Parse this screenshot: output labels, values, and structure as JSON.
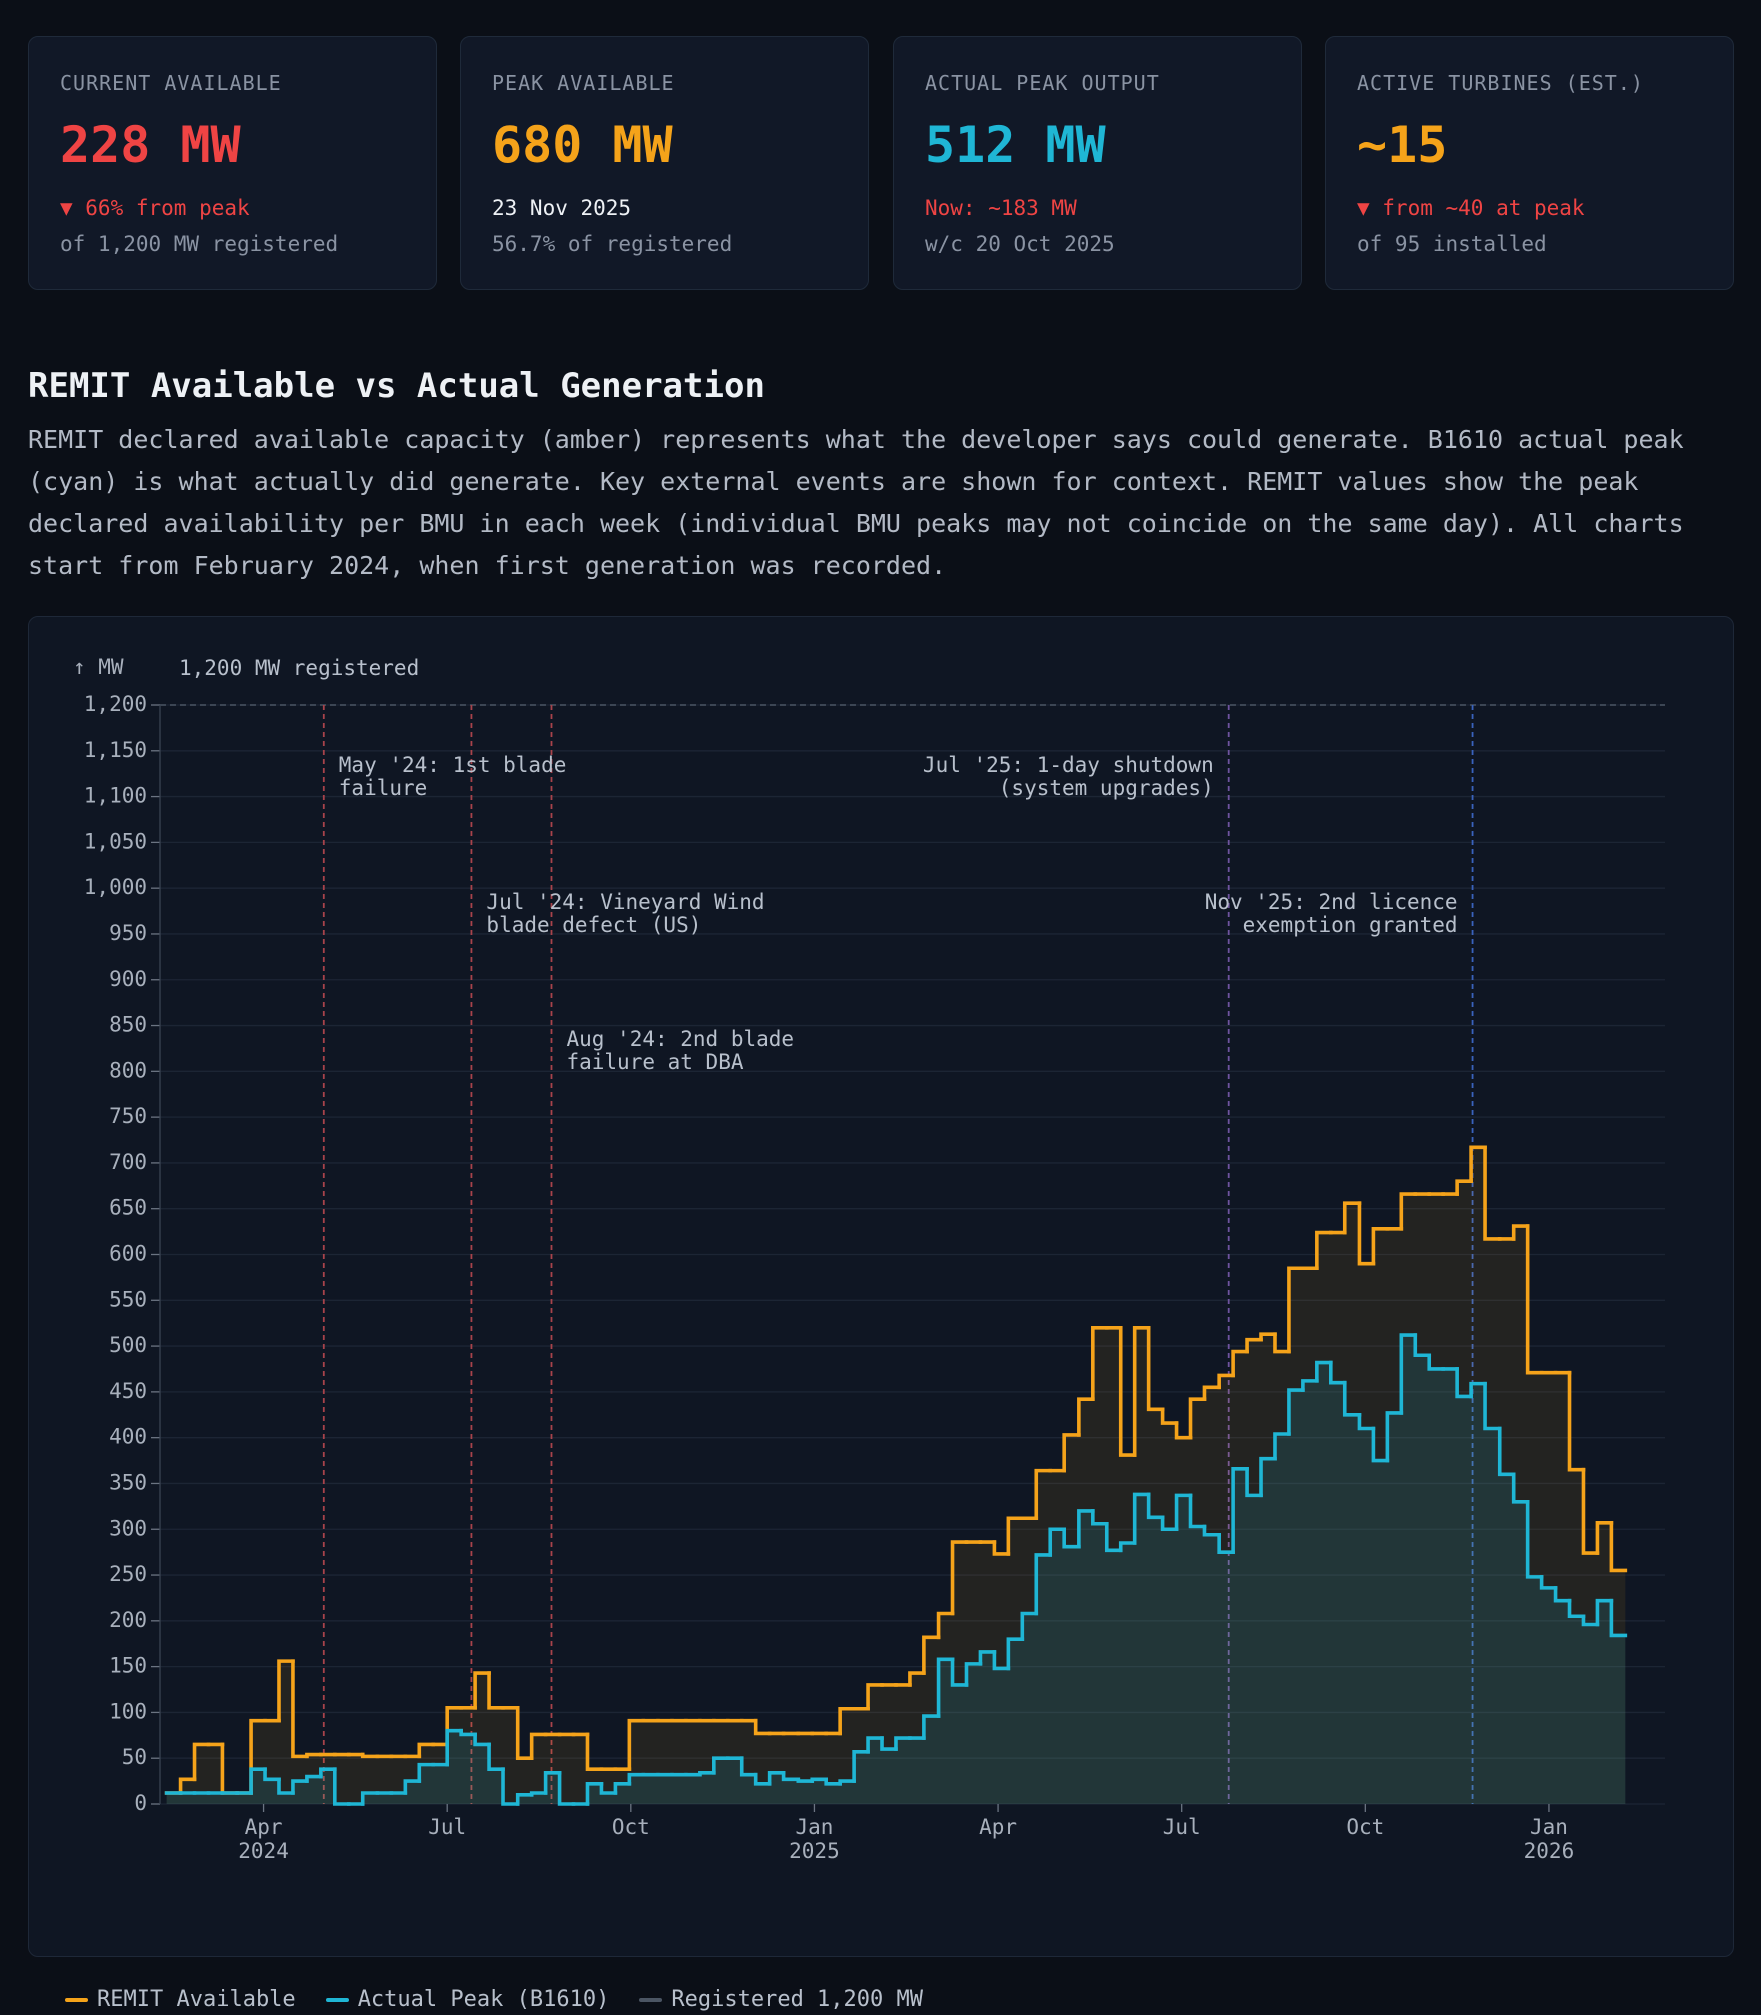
{
  "cards": [
    {
      "label": "CURRENT AVAILABLE",
      "value": "228 MW",
      "delta": "▼ 66% from peak",
      "note": "of 1,200 MW registered"
    },
    {
      "label": "PEAK AVAILABLE",
      "value": "680 MW",
      "delta": "23 Nov 2025",
      "note": "56.7% of registered"
    },
    {
      "label": "ACTUAL PEAK OUTPUT",
      "value": "512 MW",
      "delta": "Now: ~183 MW",
      "note": "w/c 20 Oct 2025"
    },
    {
      "label": "ACTIVE TURBINES (EST.)",
      "value": "~15",
      "delta": "▼ from ~40 at peak",
      "note": "of 95 installed"
    }
  ],
  "section": {
    "title": "REMIT Available vs Actual Generation",
    "description": "REMIT declared available capacity (amber) represents what the developer says could generate. B1610 actual peak (cyan) is what actually did generate. Key external events are shown for context. REMIT values show the peak declared availability per BMU in each week (individual BMU peaks may not coincide on the same day). All charts start from February 2024, when first generation was recorded."
  },
  "chart_data": {
    "type": "step",
    "y_axis_label": "↑ MW",
    "x": [
      2024.118,
      2024.137,
      2024.156,
      2024.175,
      2024.194,
      2024.214,
      2024.233,
      2024.252,
      2024.271,
      2024.29,
      2024.309,
      2024.328,
      2024.347,
      2024.366,
      2024.385,
      2024.405,
      2024.424,
      2024.443,
      2024.462,
      2024.481,
      2024.5,
      2024.519,
      2024.538,
      2024.557,
      2024.576,
      2024.596,
      2024.615,
      2024.634,
      2024.653,
      2024.672,
      2024.691,
      2024.71,
      2024.729,
      2024.748,
      2024.767,
      2024.787,
      2024.806,
      2024.825,
      2024.844,
      2024.863,
      2024.882,
      2024.901,
      2024.92,
      2024.939,
      2024.958,
      2024.978,
      2024.997,
      2025.016,
      2025.035,
      2025.054,
      2025.073,
      2025.092,
      2025.111,
      2025.13,
      2025.149,
      2025.169,
      2025.188,
      2025.207,
      2025.226,
      2025.245,
      2025.264,
      2025.283,
      2025.302,
      2025.321,
      2025.34,
      2025.36,
      2025.379,
      2025.398,
      2025.417,
      2025.436,
      2025.455,
      2025.474,
      2025.493,
      2025.512,
      2025.531,
      2025.551,
      2025.57,
      2025.589,
      2025.608,
      2025.627,
      2025.646,
      2025.665,
      2025.684,
      2025.703,
      2025.722,
      2025.742,
      2025.761,
      2025.78,
      2025.799,
      2025.818,
      2025.837,
      2025.856,
      2025.875,
      2025.894,
      2025.913,
      2025.933,
      2025.952,
      2025.971,
      2025.99,
      2026.009,
      2026.028,
      2026.047,
      2026.066,
      2026.085
    ],
    "series": [
      {
        "name": "REMIT Available",
        "color": "#f5a31a",
        "values": [
          12,
          27,
          65,
          65,
          12,
          12,
          91,
          91,
          156,
          52,
          54,
          54,
          54,
          54,
          52,
          52,
          52,
          52,
          65,
          65,
          105,
          105,
          143,
          105,
          105,
          50,
          76,
          76,
          76,
          76,
          38,
          38,
          38,
          91,
          91,
          91,
          91,
          91,
          91,
          91,
          91,
          91,
          77,
          77,
          77,
          77,
          77,
          77,
          104,
          104,
          130,
          130,
          130,
          143,
          182,
          208,
          286,
          286,
          286,
          273,
          312,
          312,
          364,
          364,
          403,
          442,
          520,
          520,
          381,
          520,
          431,
          416,
          400,
          442,
          455,
          468,
          494,
          507,
          513,
          494,
          585,
          585,
          624,
          624,
          656,
          590,
          628,
          628,
          666,
          666,
          666,
          666,
          680,
          717,
          617,
          617,
          631,
          471,
          471,
          471,
          365,
          274,
          307,
          255
        ]
      },
      {
        "name": "Actual Peak (B1610)",
        "color": "#1fb6d5",
        "values": [
          12,
          12,
          12,
          12,
          12,
          12,
          38,
          27,
          12,
          25,
          30,
          38,
          0,
          0,
          12,
          12,
          12,
          25,
          43,
          43,
          80,
          76,
          65,
          38,
          0,
          10,
          12,
          34,
          0,
          0,
          22,
          12,
          22,
          32,
          32,
          32,
          32,
          32,
          34,
          50,
          50,
          32,
          22,
          34,
          27,
          25,
          27,
          22,
          25,
          57,
          72,
          60,
          72,
          72,
          96,
          158,
          130,
          153,
          166,
          148,
          180,
          208,
          272,
          300,
          281,
          320,
          306,
          277,
          285,
          338,
          313,
          300,
          337,
          303,
          294,
          275,
          366,
          337,
          377,
          404,
          452,
          462,
          482,
          460,
          425,
          410,
          375,
          427,
          512,
          490,
          475,
          475,
          445,
          459,
          410,
          360,
          330,
          248,
          236,
          222,
          205,
          196,
          222,
          184
        ]
      }
    ],
    "reference_line": {
      "value": 1200,
      "label": "1,200 MW registered",
      "legend": "Registered 1,200 MW",
      "color": "#4b5563"
    },
    "annotations": [
      {
        "x": 2024.332,
        "text": "May '24: 1st blade\nfailure",
        "color": "#a8434b"
      },
      {
        "x": 2024.533,
        "text": "Jul '24: Vineyard Wind\nblade defect (US)",
        "color": "#a8434b"
      },
      {
        "x": 2024.642,
        "text": "Aug '24: 2nd blade\nfailure at DBA",
        "color": "#a8434b"
      },
      {
        "x": 2025.564,
        "text": "Jul '25: 1-day shutdown\n(system upgrades)",
        "color": "#6f54a0"
      },
      {
        "x": 2025.896,
        "text": "Nov '25: 2nd licence\nexemption granted",
        "color": "#3a63bd"
      }
    ],
    "xlim": [
      2024.109,
      2026.158
    ],
    "ylim": [
      0,
      1200
    ],
    "yticks": [
      0,
      50,
      100,
      150,
      200,
      250,
      300,
      350,
      400,
      450,
      500,
      550,
      600,
      650,
      700,
      750,
      800,
      850,
      900,
      950,
      {
        "value": 1000,
        "label": "1,000"
      },
      {
        "value": 1050,
        "label": "1,050"
      },
      {
        "value": 1100,
        "label": "1,100"
      },
      {
        "value": 1150,
        "label": "1,150"
      },
      {
        "value": 1200,
        "label": "1,200"
      }
    ],
    "xticks": [
      {
        "value": 2024.25,
        "label": "Apr\n2024"
      },
      {
        "value": 2024.5,
        "label": "Jul"
      },
      {
        "value": 2024.75,
        "label": "Oct"
      },
      {
        "value": 2025.0,
        "label": "Jan\n2025"
      },
      {
        "value": 2025.25,
        "label": "Apr"
      },
      {
        "value": 2025.5,
        "label": "Jul"
      },
      {
        "value": 2025.75,
        "label": "Oct"
      },
      {
        "value": 2026.0,
        "label": "Jan\n2026"
      }
    ],
    "grid": true
  }
}
